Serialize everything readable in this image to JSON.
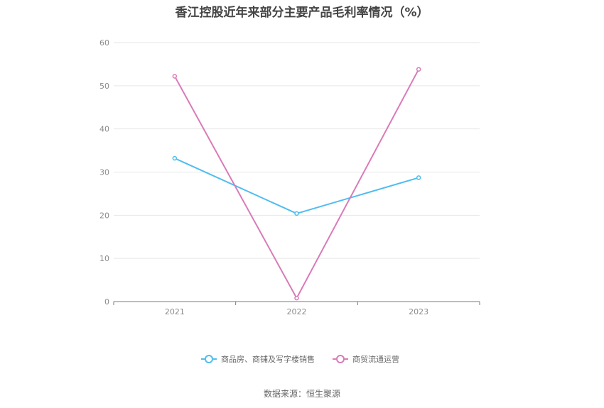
{
  "chart_data": {
    "type": "line",
    "title": "香江控股近年来部分主要产品毛利率情况（%）",
    "x": [
      "2021",
      "2022",
      "2023"
    ],
    "series": [
      {
        "name": "商品房、商铺及写字楼销售",
        "values": [
          33.2,
          20.4,
          28.7
        ],
        "color": "#4fbdf0"
      },
      {
        "name": "商贸流通运营",
        "values": [
          52.2,
          0.8,
          53.8
        ],
        "color": "#d97bb8"
      }
    ],
    "ylim": [
      0,
      60
    ],
    "yticks": [
      0,
      10,
      20,
      30,
      40,
      50,
      60
    ],
    "grid": true,
    "legend": "bottom"
  },
  "source": "数据来源：恒生聚源"
}
